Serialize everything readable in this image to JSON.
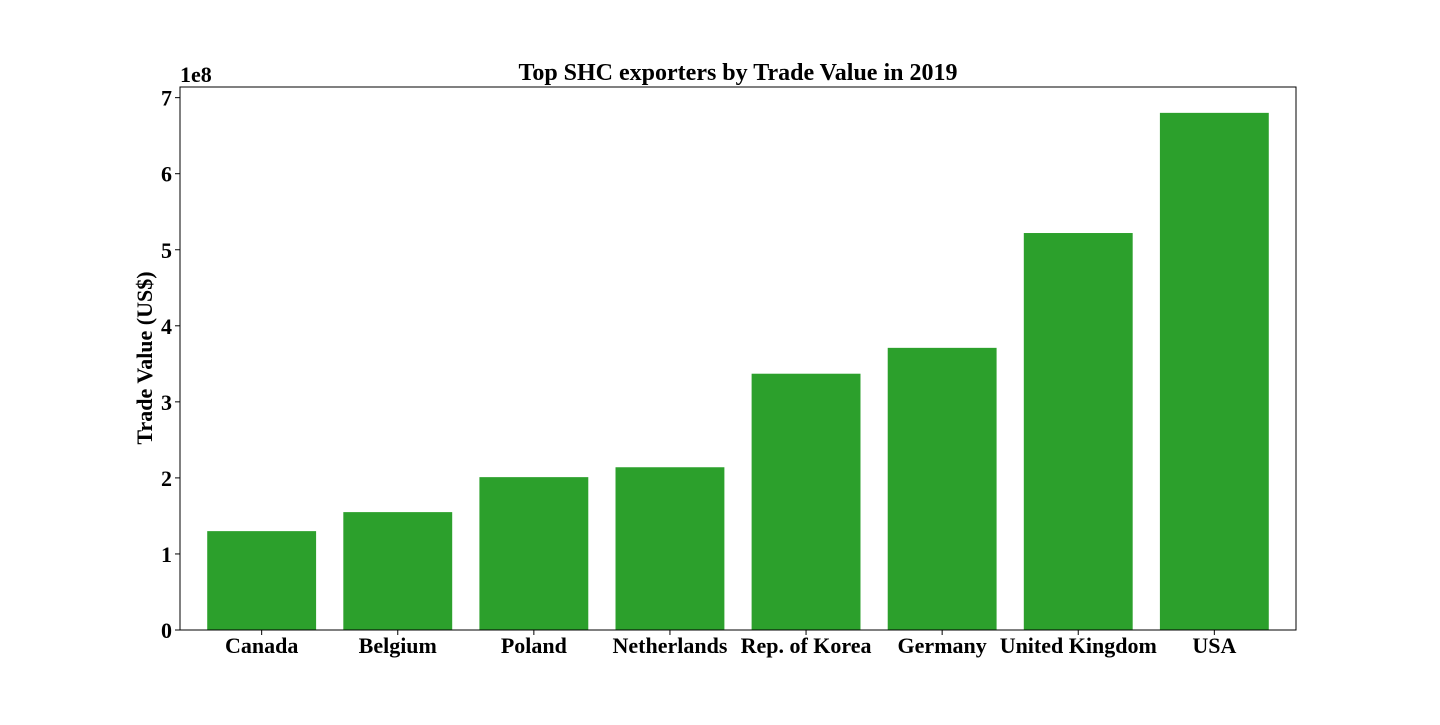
{
  "chart_data": {
    "type": "bar",
    "title": "Top SHC exporters by Trade Value in 2019",
    "xlabel": "",
    "ylabel": "Trade Value (US$)",
    "y_exponent_label": "1e8",
    "categories": [
      "Canada",
      "Belgium",
      "Poland",
      "Netherlands",
      "Rep. of Korea",
      "Germany",
      "United Kingdom",
      "USA"
    ],
    "values": [
      130000000,
      155000000,
      201000000,
      214000000,
      337000000,
      371000000,
      522000000,
      680000000
    ],
    "ylim": [
      0,
      714000000
    ],
    "yticks": [
      0,
      100000000,
      200000000,
      300000000,
      400000000,
      500000000,
      600000000,
      700000000
    ],
    "ytick_labels": [
      "0",
      "1",
      "2",
      "3",
      "4",
      "5",
      "6",
      "7"
    ],
    "bar_color": "#2ca02c",
    "grid": false,
    "legend": "none"
  }
}
